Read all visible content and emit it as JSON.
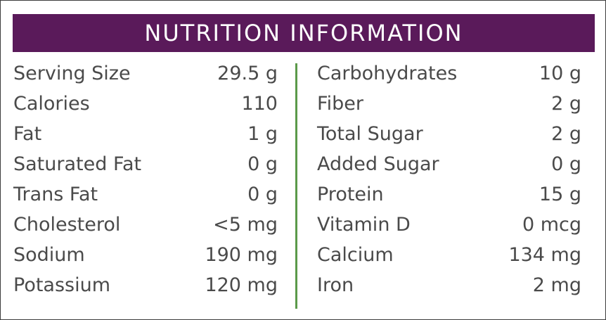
{
  "header": {
    "title": "NUTRITION INFORMATION"
  },
  "left": [
    {
      "label": "Serving Size",
      "value": "29.5 g"
    },
    {
      "label": "Calories",
      "value": "110"
    },
    {
      "label": "Fat",
      "value": "1 g"
    },
    {
      "label": "Saturated Fat",
      "value": "0 g"
    },
    {
      "label": "Trans Fat",
      "value": "0 g"
    },
    {
      "label": "Cholesterol",
      "value": "<5 mg"
    },
    {
      "label": "Sodium",
      "value": "190 mg"
    },
    {
      "label": "Potassium",
      "value": "120 mg"
    }
  ],
  "right": [
    {
      "label": "Carbohydrates",
      "value": "10 g"
    },
    {
      "label": "Fiber",
      "value": "2 g"
    },
    {
      "label": "Total Sugar",
      "value": "2 g"
    },
    {
      "label": "Added Sugar",
      "value": "0 g"
    },
    {
      "label": "Protein",
      "value": "15 g"
    },
    {
      "label": "Vitamin D",
      "value": "0 mcg"
    },
    {
      "label": "Calcium",
      "value": "134 mg"
    },
    {
      "label": "Iron",
      "value": "2 mg"
    }
  ],
  "colors": {
    "header_bg": "#5a1a5a",
    "divider": "#5b9a4a",
    "text": "#4a4a4a"
  }
}
